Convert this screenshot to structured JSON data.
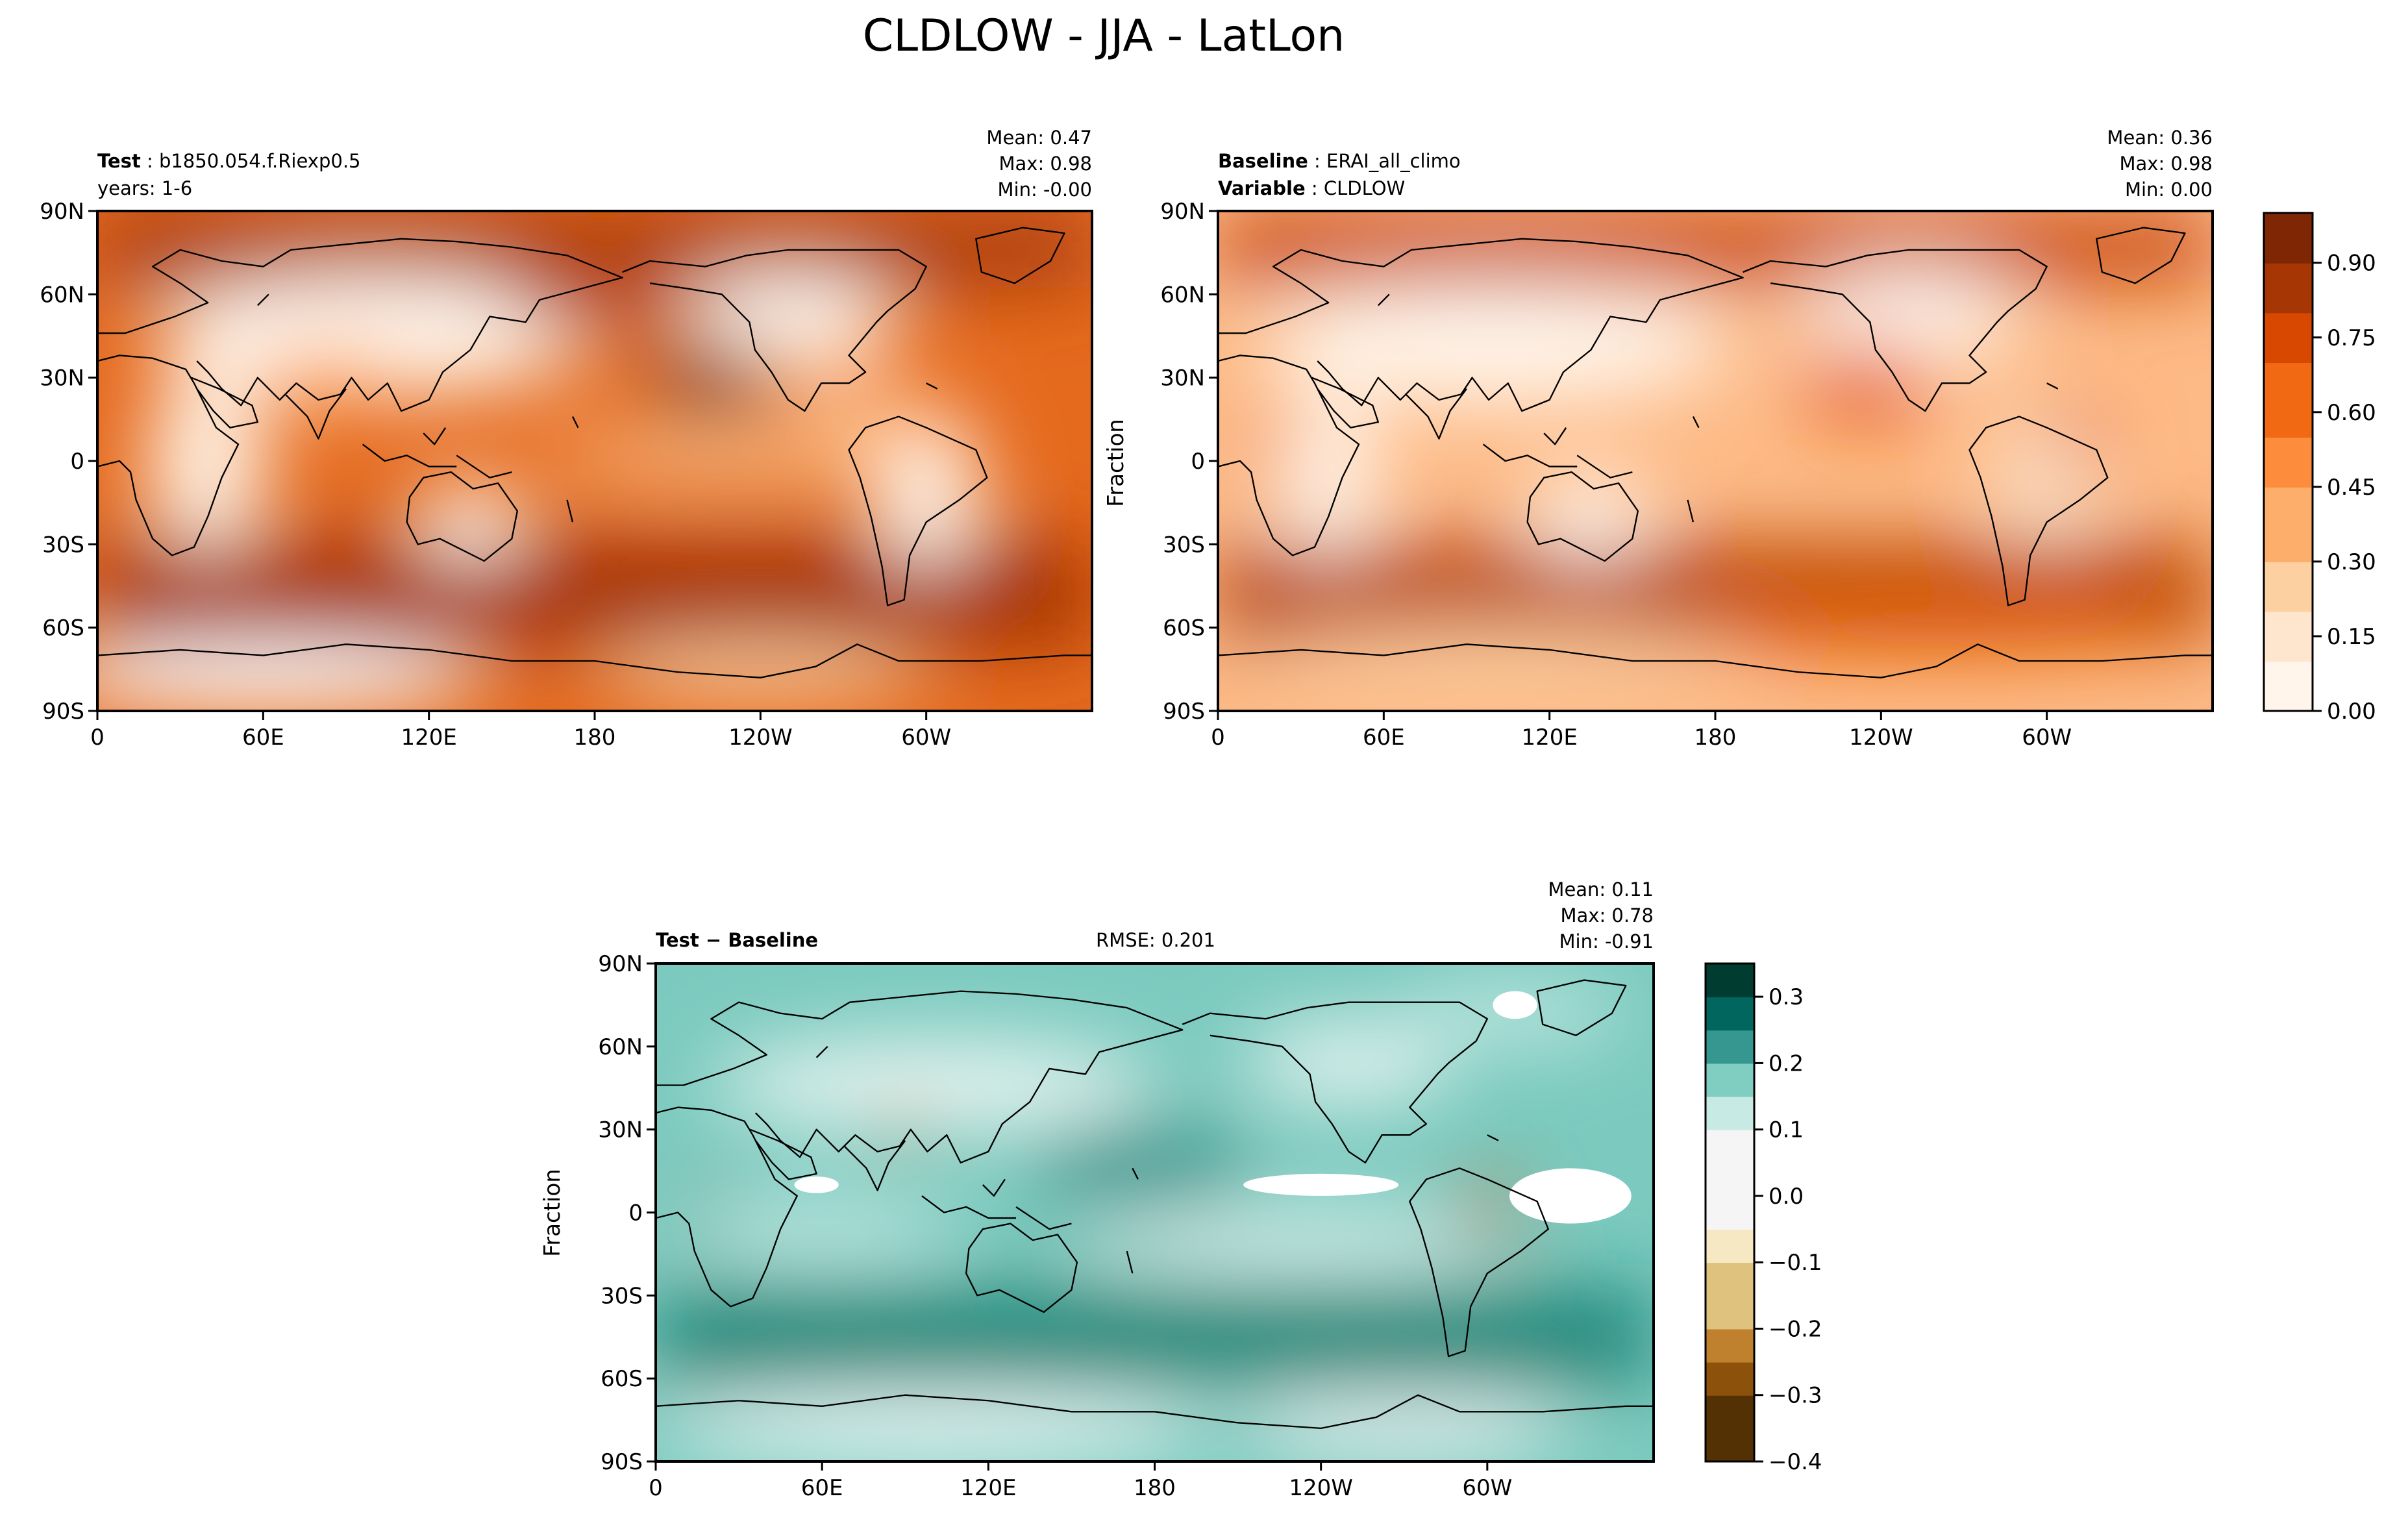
{
  "title": "CLDLOW - JJA - LatLon",
  "colors": {
    "seq": [
      "#fff5eb",
      "#fee6ce",
      "#fdd0a2",
      "#fdae6b",
      "#fd8d3c",
      "#f16913",
      "#d94801",
      "#a63603",
      "#7f2704"
    ],
    "div_neg": [
      "#f5f5f5",
      "#f6e8c3",
      "#dfc27d",
      "#bf812d",
      "#8c510a",
      "#543005"
    ],
    "div_pos": [
      "#f5f5f5",
      "#c7eae5",
      "#80cdc1",
      "#35978f",
      "#01665e",
      "#003c30"
    ]
  },
  "panels": [
    {
      "id": "test",
      "label1_key": "Test",
      "label1_val": "b1850.054.f.Riexp0.5",
      "label2_key": "",
      "label2_val": "years: 1-6",
      "stats": {
        "mean": "Mean:  0.47",
        "max": "Max:  0.98",
        "min": "Min: -0.00"
      },
      "ylabel": ""
    },
    {
      "id": "baseline",
      "label1_key": "Baseline",
      "label1_val": "ERAI_all_climo",
      "label2_key": "Variable",
      "label2_val": "CLDLOW",
      "stats": {
        "mean": "Mean:  0.36",
        "max": "Max:  0.98",
        "min": "Min:  0.00"
      },
      "ylabel": "Fraction"
    },
    {
      "id": "diff",
      "label1_key": "Test − Baseline",
      "label1_val": "",
      "rmse": "RMSE: 0.201",
      "stats": {
        "mean": "Mean:  0.11",
        "max": "Max:  0.78",
        "min": "Min: -0.91"
      },
      "ylabel": "Fraction"
    }
  ],
  "lat_ticks": [
    "90N",
    "60N",
    "30N",
    "0",
    "30S",
    "60S",
    "90S"
  ],
  "lon_ticks": [
    "0",
    "60E",
    "120E",
    "180",
    "120W",
    "60W"
  ],
  "colorbar_top": {
    "ticks": [
      "0.00",
      "0.15",
      "0.30",
      "0.45",
      "0.60",
      "0.75",
      "0.90"
    ],
    "values": [
      0,
      0.15,
      0.3,
      0.45,
      0.6,
      0.75,
      0.9
    ],
    "range": [
      0,
      1.0
    ]
  },
  "colorbar_bottom": {
    "ticks": [
      "0.3",
      "0.2",
      "0.1",
      "0.0",
      "−0.1",
      "−0.2",
      "−0.3",
      "−0.4"
    ],
    "values": [
      0.3,
      0.2,
      0.1,
      0.0,
      -0.1,
      -0.2,
      -0.3,
      -0.4
    ],
    "range": [
      -0.4,
      0.35
    ]
  },
  "chart_data": [
    {
      "type": "heatmap",
      "title": "CLDLOW - JJA - LatLon",
      "variable": "CLDLOW",
      "season": "JJA",
      "case": "b1850.054.f.Riexp0.5",
      "years": "1-6",
      "mean": 0.47,
      "max": 0.98,
      "min": -0.0,
      "x_ticks": [
        "0",
        "60E",
        "120E",
        "180",
        "120W",
        "60W"
      ],
      "y_ticks": [
        "90N",
        "60N",
        "30N",
        "0",
        "30S",
        "60S",
        "90S"
      ],
      "zlim": [
        0.0,
        1.0
      ]
    },
    {
      "type": "heatmap",
      "case": "ERAI_all_climo",
      "variable": "CLDLOW",
      "mean": 0.36,
      "max": 0.98,
      "min": 0.0,
      "ylabel": "Fraction",
      "colorbar_ticks": [
        0.0,
        0.15,
        0.3,
        0.45,
        0.6,
        0.75,
        0.9
      ],
      "zlim": [
        0.0,
        1.0
      ]
    },
    {
      "type": "heatmap",
      "case": "Test − Baseline",
      "mean": 0.11,
      "max": 0.78,
      "min": -0.91,
      "rmse": 0.201,
      "ylabel": "Fraction",
      "colorbar_ticks": [
        -0.4,
        -0.3,
        -0.2,
        -0.1,
        0.0,
        0.1,
        0.2,
        0.3
      ],
      "zlim": [
        -0.4,
        0.35
      ]
    }
  ]
}
